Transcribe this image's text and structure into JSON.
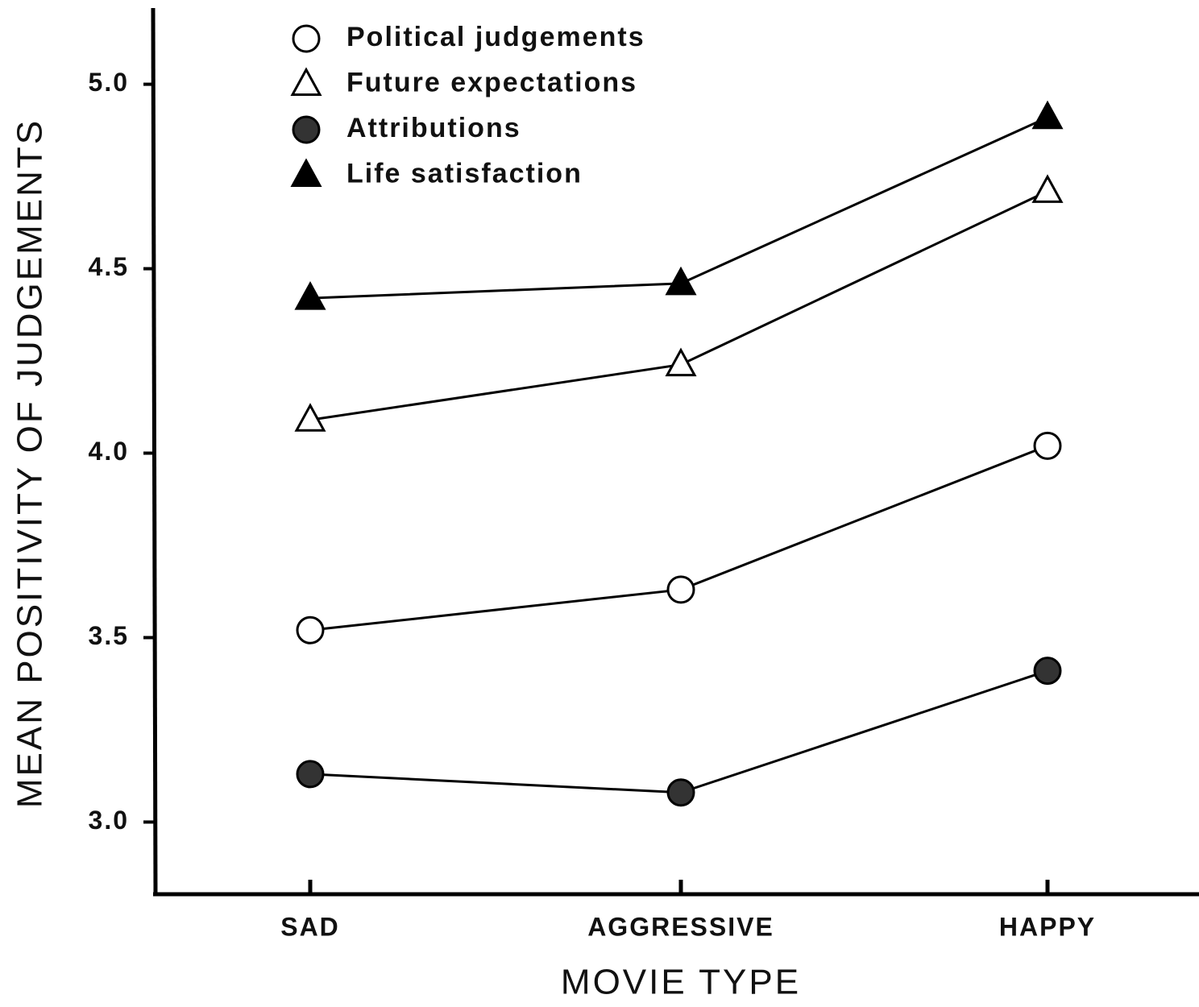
{
  "chart_data": {
    "type": "line",
    "x_label": "MOVIE TYPE",
    "y_label": "MEAN POSITIVITY OF JUDGEMENTS",
    "categories": [
      "SAD",
      "AGGRESSIVE",
      "HAPPY"
    ],
    "series": [
      {
        "name": "Political judgements",
        "color": "#000000",
        "marker": "circle-open",
        "values": [
          3.52,
          3.63,
          4.02
        ]
      },
      {
        "name": "Future expectations",
        "color": "#000000",
        "marker": "triangle-open",
        "values": [
          4.09,
          4.24,
          4.71
        ]
      },
      {
        "name": "Attributions",
        "color": "#333333",
        "marker": "circle-filled",
        "values": [
          3.13,
          3.08,
          3.41
        ]
      },
      {
        "name": "Life satisfaction",
        "color": "#000000",
        "marker": "triangle-filled",
        "values": [
          4.42,
          4.46,
          4.91
        ]
      }
    ],
    "ylim": [
      2.8,
      5.2
    ],
    "yticks": [
      {
        "value": 3,
        "label": "3.0"
      },
      {
        "value": 3.5,
        "label": "3.5"
      },
      {
        "value": 4,
        "label": "4.0"
      },
      {
        "value": 4.5,
        "label": "4.5"
      },
      {
        "value": 5,
        "label": "5.0"
      }
    ],
    "legend": "upper left"
  }
}
